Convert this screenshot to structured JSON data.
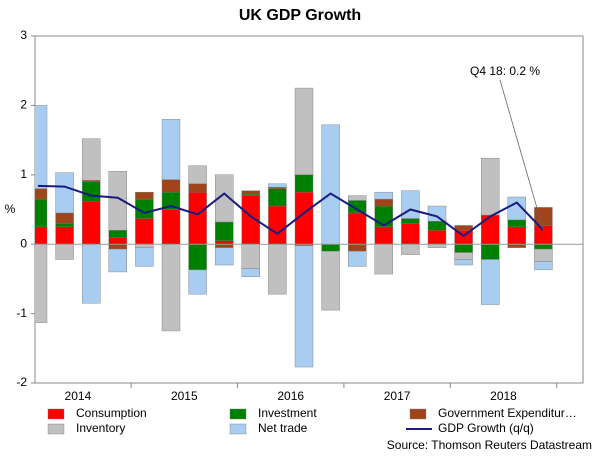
{
  "chart_data": {
    "type": "bar",
    "title": "UK GDP Growth",
    "y_label": "%",
    "annotation": "Q4 18: 0.2 %",
    "source": "Source: Thomson Reuters Datastream",
    "stacked": true,
    "categories": [
      null,
      null,
      null,
      null,
      null,
      null,
      null,
      null,
      null,
      null,
      null,
      null,
      null,
      null,
      null,
      null,
      null,
      null,
      null,
      null
    ],
    "year_labels": [
      "2014",
      "2015",
      "2016",
      "2017",
      "2018"
    ],
    "ylim": [
      -2,
      3
    ],
    "yticks": [
      -2,
      -1,
      0,
      1,
      2,
      3
    ],
    "series": [
      {
        "name": "Consumption",
        "color": "#ff0000",
        "values": [
          0.25,
          0.25,
          0.62,
          0.1,
          0.37,
          0.5,
          0.75,
          0.05,
          0.7,
          0.55,
          0.75,
          0,
          0.45,
          0.25,
          0.3,
          0.2,
          0.2,
          0.42,
          0.25,
          0.27
        ]
      },
      {
        "name": "Investment",
        "color": "#008000",
        "values": [
          0.4,
          0.05,
          0.28,
          0.1,
          0.28,
          0.25,
          -0.37,
          0.27,
          0.02,
          0.25,
          0.25,
          -0.1,
          0.18,
          0.3,
          0.07,
          0.13,
          -0.12,
          -0.22,
          0.1,
          -0.07
        ]
      },
      {
        "name": "Government Expenditur…",
        "color": "#a0441a",
        "values": [
          0.15,
          0.15,
          0.02,
          -0.07,
          0.1,
          0.18,
          0.12,
          -0.05,
          0.05,
          0.02,
          -0.02,
          0,
          -0.1,
          0.1,
          0,
          0,
          0.07,
          0,
          -0.05,
          0.26
        ]
      },
      {
        "name": "Inventory",
        "color": "#c0c0c0",
        "values": [
          -1.13,
          -0.22,
          0.6,
          0.85,
          -0.05,
          -1.25,
          0.26,
          0.68,
          -0.35,
          -0.72,
          1.25,
          -0.85,
          0.07,
          -0.43,
          -0.15,
          -0.05,
          -0.1,
          0.82,
          0,
          -0.18
        ]
      },
      {
        "name": "Net trade",
        "color": "#a8cdf0",
        "values": [
          1.2,
          0.58,
          -0.85,
          -0.33,
          -0.27,
          0.87,
          -0.35,
          -0.25,
          -0.12,
          0.05,
          -1.75,
          1.72,
          -0.22,
          0.1,
          0.4,
          0.22,
          -0.08,
          -0.65,
          0.33,
          -0.12
        ]
      },
      {
        "name": "GDP Growth (q/q)",
        "type": "line",
        "color": "#1a1a80",
        "values": [
          0.84,
          0.83,
          0.7,
          0.67,
          0.45,
          0.55,
          0.43,
          0.73,
          0.4,
          0.15,
          0.45,
          0.73,
          0.5,
          0.27,
          0.5,
          0.4,
          0.12,
          0.4,
          0.6,
          0.2
        ]
      }
    ]
  }
}
